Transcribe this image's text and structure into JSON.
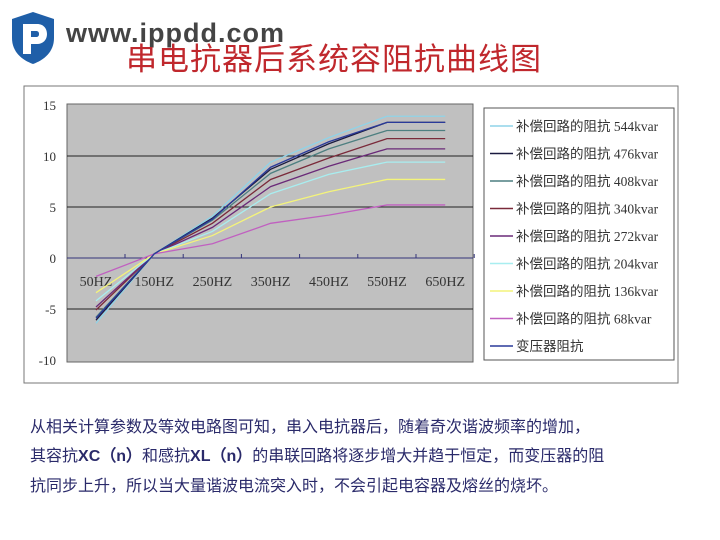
{
  "header": {
    "site": "www.ippdd.com",
    "title": "串电抗器后系统容阻抗曲线图"
  },
  "chart_data": {
    "type": "line",
    "title": "",
    "xlabel": "",
    "ylabel": "",
    "categories": [
      "50HZ",
      "150HZ",
      "250HZ",
      "350HZ",
      "450HZ",
      "550HZ",
      "650HZ"
    ],
    "ylim": [
      -10,
      15
    ],
    "yticks": [
      "15",
      "10",
      "5",
      "0",
      "-5",
      "-10"
    ],
    "grid": true,
    "legend_position": "right",
    "series": [
      {
        "name": "补偿回路的阻抗 544kvar",
        "color": "#8fd3e8",
        "values": [
          -6.4,
          0.4,
          4.1,
          9.4,
          11.8,
          13.9,
          13.9
        ]
      },
      {
        "name": "补偿回路的阻抗 476kvar",
        "color": "#1a1a40",
        "values": [
          -6.1,
          0.4,
          3.9,
          8.7,
          11.2,
          13.3,
          13.3
        ]
      },
      {
        "name": "补偿回路的阻抗 408kvar",
        "color": "#4d7f80",
        "values": [
          -5.8,
          0.4,
          3.7,
          8.3,
          10.7,
          12.5,
          12.5
        ]
      },
      {
        "name": "补偿回路的阻抗 340kvar",
        "color": "#7a2a3a",
        "values": [
          -5.1,
          0.4,
          3.4,
          7.7,
          9.8,
          11.7,
          11.7
        ]
      },
      {
        "name": "补偿回路的阻抗 272kvar",
        "color": "#6a2a78",
        "values": [
          -4.8,
          0.4,
          3.0,
          7.0,
          9.0,
          10.7,
          10.7
        ]
      },
      {
        "name": "补偿回路的阻抗 204kvar",
        "color": "#a8eef0",
        "values": [
          -4.2,
          0.4,
          2.6,
          6.3,
          8.2,
          9.4,
          9.4
        ]
      },
      {
        "name": "补偿回路的阻抗 136kvar",
        "color": "#f4f47a",
        "values": [
          -3.4,
          0.4,
          2.2,
          5.0,
          6.5,
          7.7,
          7.7
        ]
      },
      {
        "name": "补偿回路的阻抗 68kvar",
        "color": "#c060c0",
        "values": [
          -1.8,
          0.4,
          1.4,
          3.4,
          4.2,
          5.2,
          5.2
        ]
      },
      {
        "name": "变压器阻抗",
        "color": "#2a3a9a",
        "values": [
          -5.9,
          0.4,
          3.8,
          8.9,
          11.4,
          13.3,
          13.3
        ]
      }
    ]
  },
  "description": {
    "line1": "从相关计算参数及等效电路图可知，串入电抗器后，随着奇次谐波频率的增加，",
    "line2a": "其容抗",
    "xc": "XC（n）",
    "line2b": "和感抗",
    "xl": "XL（n）",
    "line2c": "的串联回路将逐步增大并趋于恒定，而变压器的阻",
    "line3": "抗同步上升，所以当大量谐波电流突入时，不会引起电容器及熔丝的烧坏。"
  }
}
